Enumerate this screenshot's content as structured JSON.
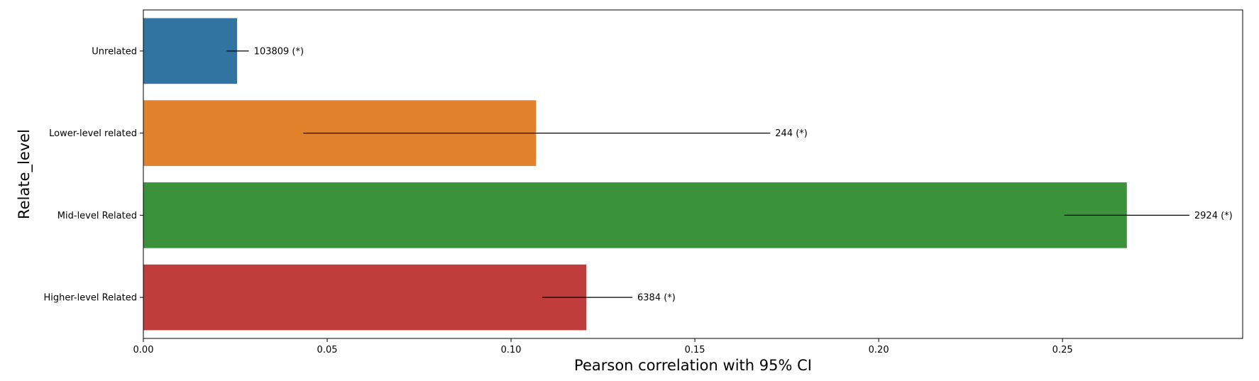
{
  "chart_data": {
    "type": "bar",
    "orientation": "horizontal",
    "title": "",
    "xlabel": "Pearson correlation with 95% CI",
    "ylabel": "Relate_level",
    "xlim": [
      0,
      0.299
    ],
    "xticks": [
      0.0,
      0.05,
      0.1,
      0.15,
      0.2,
      0.25
    ],
    "xtick_labels": [
      "0.00",
      "0.05",
      "0.10",
      "0.15",
      "0.20",
      "0.25"
    ],
    "grid": false,
    "legend": "none",
    "categories": [
      "Unrelated",
      "Lower-level related",
      "Mid-level Related",
      "Higher-level Related"
    ],
    "values": [
      0.0255,
      0.1068,
      0.2675,
      0.1205
    ],
    "ci_low": [
      0.0227,
      0.0435,
      0.2505,
      0.1085
    ],
    "ci_high": [
      0.0287,
      0.1705,
      0.2845,
      0.133
    ],
    "annotations": [
      "103809 (*)",
      "244 (*)",
      "2924 (*)",
      "6384 (*)"
    ],
    "colors": [
      "#3274a1",
      "#e1812c",
      "#3a923a",
      "#c03d3e"
    ]
  }
}
